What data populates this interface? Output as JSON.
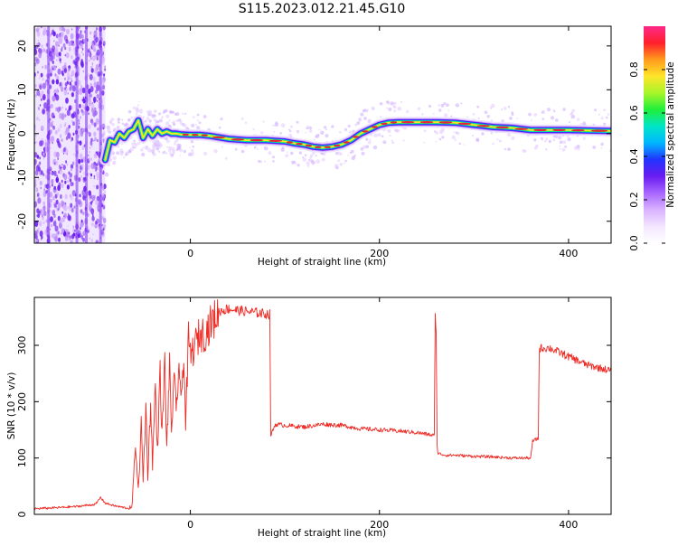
{
  "figure_title": "S115.2023.012.21.45.G10",
  "colors": {
    "snr_line": "#ee2a24",
    "ridge_core": "#e8233a",
    "colormap": [
      "#ffffff",
      "#f3e6ff",
      "#d9b3ff",
      "#a866ff",
      "#6a1cf0",
      "#2233ff",
      "#00b6ff",
      "#00e5c8",
      "#1fef3b",
      "#a7f52a",
      "#ffe52a",
      "#ff9b1c",
      "#ff1f2b",
      "#ff2a8a"
    ]
  },
  "chart_data": [
    {
      "type": "heatmap",
      "title": "",
      "xlabel": "Height of straight line (km)",
      "ylabel": "Frequency (Hz)",
      "xlim": [
        -165,
        445
      ],
      "ylim": [
        -25,
        24.5
      ],
      "xticks": [
        0,
        200,
        400
      ],
      "yticks": [
        -20,
        -10,
        0,
        10,
        20
      ],
      "x_tick_labels": [
        "0",
        "200",
        "400"
      ],
      "y_tick_labels": [
        "-20",
        "-10",
        "0",
        "10",
        "20"
      ],
      "grid": false,
      "noise_region_x": [
        -165,
        -90
      ],
      "ridge": {
        "x": [
          -90,
          -85,
          -80,
          -75,
          -70,
          -65,
          -60,
          -55,
          -50,
          -45,
          -40,
          -35,
          -30,
          -25,
          -20,
          -15,
          -10,
          0,
          10,
          20,
          40,
          60,
          80,
          100,
          110,
          120,
          130,
          140,
          150,
          160,
          170,
          180,
          190,
          200,
          210,
          220,
          240,
          260,
          280,
          300,
          320,
          340,
          360,
          380,
          400,
          420,
          445
        ],
        "y": [
          -6,
          -1.5,
          -2,
          0,
          -1,
          0.5,
          1,
          3,
          -1,
          1,
          -0.5,
          1,
          0,
          0.5,
          0,
          0,
          -0.2,
          -0.3,
          -0.3,
          -0.5,
          -1.2,
          -1.5,
          -1.5,
          -1.8,
          -2.2,
          -2.5,
          -3,
          -3.2,
          -3,
          -2.5,
          -1.5,
          0,
          1,
          2,
          2.5,
          2.6,
          2.6,
          2.6,
          2.5,
          2,
          1.5,
          1.3,
          0.8,
          0.8,
          0.8,
          0.7,
          0.6
        ]
      },
      "colorbar": {
        "label": "Normalized spectral amplitude",
        "range": [
          0,
          1
        ],
        "ticks": [
          0.0,
          0.2,
          0.4,
          0.6,
          0.8
        ],
        "tick_labels": [
          "0.0",
          "0.2",
          "0.4",
          "0.6",
          "0.8"
        ]
      }
    },
    {
      "type": "line",
      "title": "",
      "xlabel": "Height of straight line (km)",
      "ylabel": "SNR (10 * v/v)",
      "xlim": [
        -165,
        445
      ],
      "ylim": [
        0,
        385
      ],
      "xticks": [
        0,
        200,
        400
      ],
      "yticks": [
        0,
        100,
        200,
        300
      ],
      "x_tick_labels": [
        "0",
        "200",
        "400"
      ],
      "y_tick_labels": [
        "0",
        "100",
        "200",
        "300"
      ],
      "grid": false,
      "series": [
        {
          "x": [
            -165,
            -140,
            -120,
            -110,
            -100,
            -95,
            -90,
            -80,
            -70,
            -62,
            -60,
            -58,
            -55,
            -52,
            -50,
            -47,
            -45,
            -42,
            -40,
            -37,
            -35,
            -32,
            -30,
            -27,
            -25,
            -22,
            -20,
            -17,
            -15,
            -12,
            -10,
            -7,
            -5,
            -2,
            0,
            5,
            10,
            15,
            20,
            25,
            30,
            40,
            50,
            60,
            70,
            84,
            85,
            90,
            100,
            120,
            140,
            160,
            180,
            200,
            220,
            240,
            258,
            259,
            260,
            261,
            262,
            270,
            280,
            300,
            320,
            340,
            360,
            362,
            368,
            369,
            370,
            380,
            400,
            420,
            445
          ],
          "y": [
            10,
            12,
            14,
            16,
            18,
            30,
            20,
            15,
            12,
            10,
            60,
            130,
            40,
            160,
            60,
            190,
            70,
            200,
            90,
            230,
            110,
            250,
            140,
            270,
            120,
            260,
            150,
            240,
            180,
            270,
            190,
            290,
            160,
            310,
            280,
            300,
            320,
            320,
            335,
            345,
            360,
            365,
            362,
            360,
            358,
            355,
            140,
            160,
            158,
            155,
            160,
            158,
            152,
            150,
            148,
            145,
            140,
            350,
            330,
            120,
            108,
            105,
            105,
            103,
            102,
            100,
            100,
            130,
            135,
            290,
            295,
            295,
            280,
            265,
            255
          ]
        }
      ]
    }
  ]
}
